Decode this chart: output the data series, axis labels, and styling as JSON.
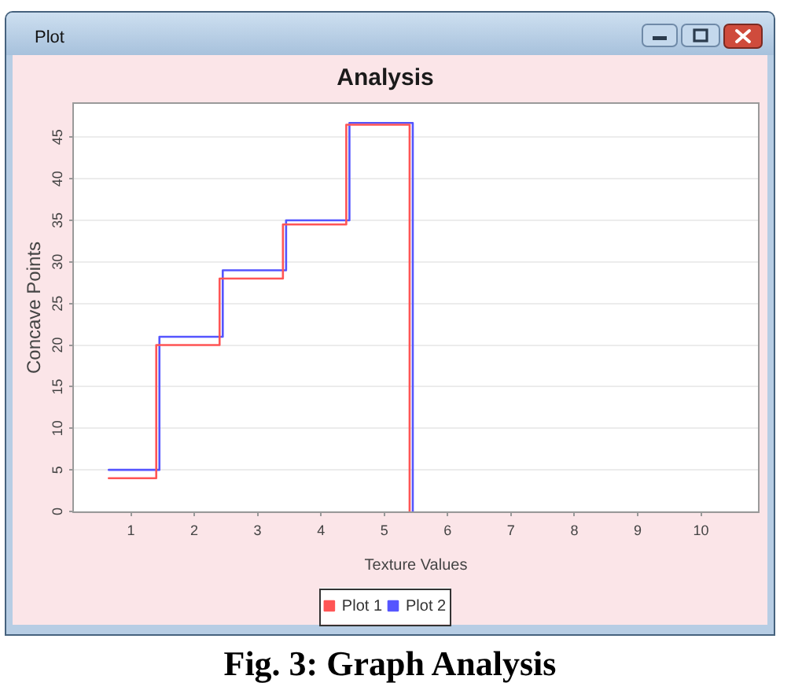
{
  "chart_data": {
    "type": "step",
    "title": "Analysis",
    "xlabel": "Texture Values",
    "ylabel": "Concave Points",
    "annotations": [
      "Plot",
      "Fig. 3: Graph Analysis"
    ],
    "series": [
      {
        "name": "Plot 1",
        "color": "#ff5555",
        "x": [
          0.65,
          1.4,
          2.4,
          3.4,
          4.4,
          5.4
        ],
        "values": [
          4,
          20,
          28,
          34.5,
          46.5,
          0
        ]
      },
      {
        "name": "Plot 2",
        "color": "#5555ff",
        "x": [
          0.65,
          1.45,
          2.45,
          3.45,
          4.45,
          5.45
        ],
        "values": [
          5,
          21,
          29,
          35,
          46.7,
          0
        ]
      }
    ],
    "xlim": [
      0.1,
      10.9
    ],
    "xticks": [
      1,
      2,
      3,
      4,
      5,
      6,
      7,
      8,
      9,
      10
    ],
    "ylim": [
      0,
      49
    ],
    "yticks": [
      0,
      5,
      10,
      15,
      20,
      25,
      30,
      35,
      40,
      45
    ],
    "grid": "y",
    "legend": "bottom",
    "marker": "none"
  }
}
